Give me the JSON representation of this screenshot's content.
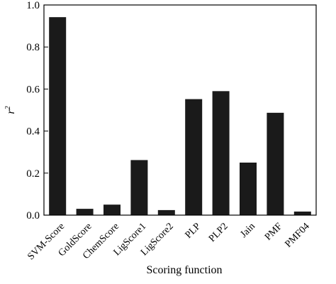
{
  "chart_data": {
    "type": "bar",
    "title": "",
    "xlabel": "Scoring function",
    "ylabel": "r",
    "ylabel_superscript": "2",
    "categories": [
      "SVM-Score",
      "GoldScore",
      "ChemScore",
      "LigScore1",
      "LigScore2",
      "PLP",
      "PLP2",
      "Jain",
      "PMF",
      "PMF04"
    ],
    "values": [
      0.942,
      0.03,
      0.05,
      0.262,
      0.024,
      0.552,
      0.59,
      0.25,
      0.487,
      0.017
    ],
    "ylim": [
      0,
      1.0
    ],
    "yticks": [
      "0.0",
      "0.2",
      "0.4",
      "0.6",
      "0.8",
      "1.0"
    ],
    "bar_color": "#1a1a1a",
    "grid": false,
    "legend": "none"
  }
}
